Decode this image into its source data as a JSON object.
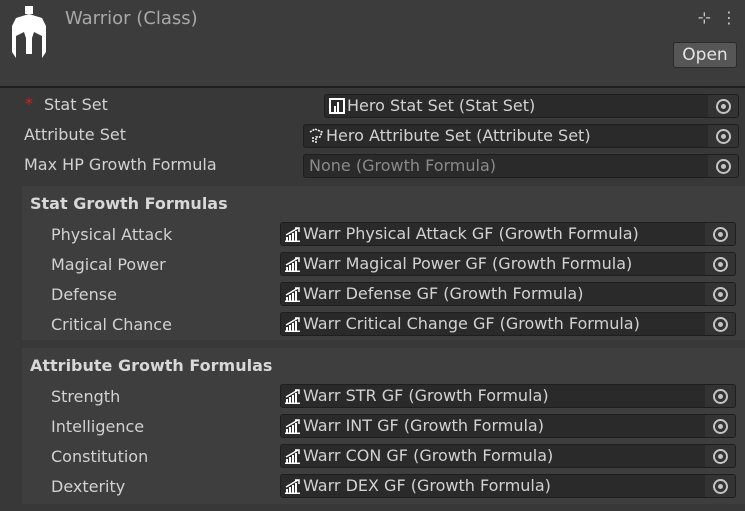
{
  "header": {
    "title": "Warrior (Class)",
    "open_label": "Open",
    "icons": [
      "class-helmet-logo",
      "settings-sliders-icon",
      "more-vertical-icon"
    ]
  },
  "fields": {
    "stat_set": {
      "label": "Stat Set",
      "required": "*",
      "value": "Hero Stat Set (Stat Set)",
      "icon": "stat-set-icon"
    },
    "attribute_set": {
      "label": "Attribute Set",
      "value": "Hero Attribute Set (Attribute Set)",
      "icon": "attribute-set-icon"
    },
    "max_hp": {
      "label": "Max HP Growth Formula",
      "value": "None (Growth Formula)"
    }
  },
  "stat_growth": {
    "title": "Stat Growth Formulas",
    "items": [
      {
        "label": "Physical Attack",
        "value": "Warr Physical Attack GF (Growth Formula)"
      },
      {
        "label": "Magical Power",
        "value": "Warr Magical Power GF (Growth Formula)"
      },
      {
        "label": "Defense",
        "value": "Warr Defense GF (Growth Formula)"
      },
      {
        "label": "Critical Chance",
        "value": "Warr Critical Change GF (Growth Formula)"
      }
    ]
  },
  "attribute_growth": {
    "title": "Attribute Growth Formulas",
    "items": [
      {
        "label": "Strength",
        "value": "Warr STR GF (Growth Formula)"
      },
      {
        "label": "Intelligence",
        "value": "Warr INT GF (Growth Formula)"
      },
      {
        "label": "Constitution",
        "value": "Warr CON GF (Growth Formula)"
      },
      {
        "label": "Dexterity",
        "value": "Warr DEX GF (Growth Formula)"
      }
    ]
  }
}
